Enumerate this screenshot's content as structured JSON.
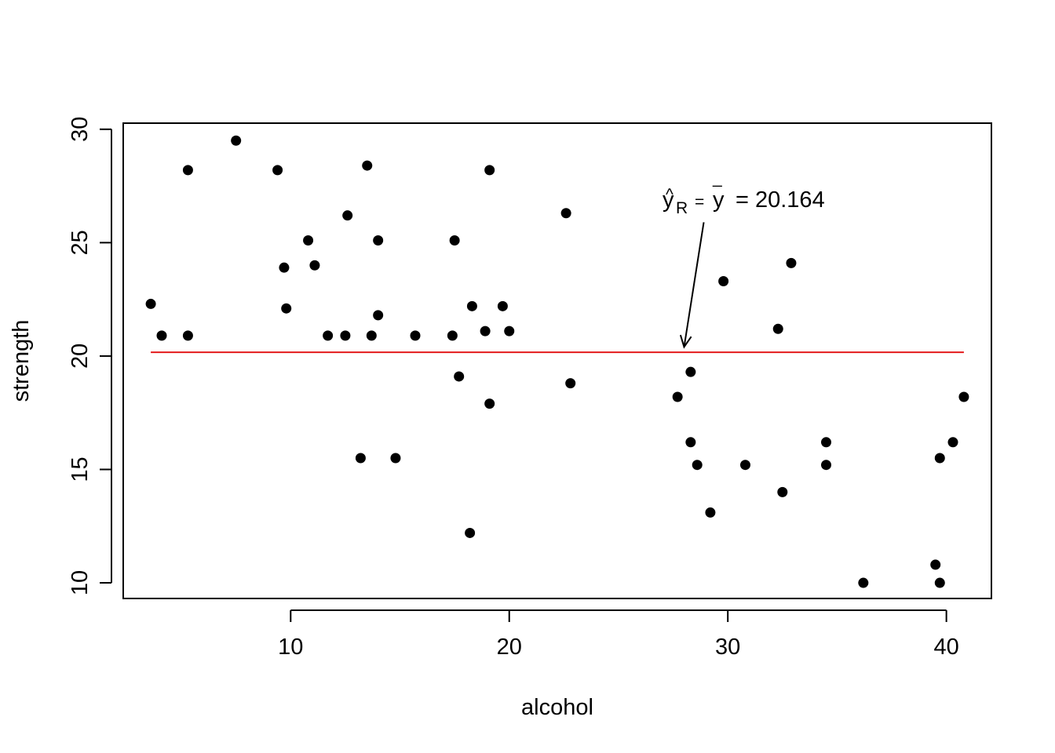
{
  "chart_data": {
    "type": "scatter",
    "title": "",
    "xlabel": "alcohol",
    "ylabel": "strength",
    "xlim": [
      2.34,
      42.06
    ],
    "ylim": [
      9.31,
      30.27
    ],
    "x_ticks": [
      10,
      20,
      30,
      40
    ],
    "y_ticks": [
      10,
      15,
      20,
      25,
      30
    ],
    "x_tick_labels": [
      "10",
      "20",
      "30",
      "40"
    ],
    "y_tick_labels": [
      "10",
      "15",
      "20",
      "25",
      "30"
    ],
    "grid": false,
    "legend": "none",
    "colors": {
      "points": "#000000",
      "fit_line": "#e31a1c",
      "axes": "#000000"
    },
    "points": [
      {
        "x": 3.6,
        "y": 22.3
      },
      {
        "x": 4.1,
        "y": 20.9
      },
      {
        "x": 5.3,
        "y": 28.2
      },
      {
        "x": 5.3,
        "y": 20.9
      },
      {
        "x": 7.5,
        "y": 29.5
      },
      {
        "x": 9.4,
        "y": 28.2
      },
      {
        "x": 9.7,
        "y": 23.9
      },
      {
        "x": 9.8,
        "y": 22.1
      },
      {
        "x": 10.8,
        "y": 25.1
      },
      {
        "x": 11.1,
        "y": 24.0
      },
      {
        "x": 11.7,
        "y": 20.9
      },
      {
        "x": 12.5,
        "y": 20.9
      },
      {
        "x": 12.6,
        "y": 26.2
      },
      {
        "x": 13.2,
        "y": 15.5
      },
      {
        "x": 13.5,
        "y": 28.4
      },
      {
        "x": 13.7,
        "y": 20.9
      },
      {
        "x": 14.0,
        "y": 25.1
      },
      {
        "x": 14.0,
        "y": 21.8
      },
      {
        "x": 14.8,
        "y": 15.5
      },
      {
        "x": 15.7,
        "y": 20.9
      },
      {
        "x": 17.4,
        "y": 20.9
      },
      {
        "x": 17.5,
        "y": 25.1
      },
      {
        "x": 17.7,
        "y": 19.1
      },
      {
        "x": 18.2,
        "y": 12.2
      },
      {
        "x": 18.3,
        "y": 22.2
      },
      {
        "x": 18.9,
        "y": 21.1
      },
      {
        "x": 19.1,
        "y": 28.2
      },
      {
        "x": 19.1,
        "y": 17.9
      },
      {
        "x": 19.7,
        "y": 22.2
      },
      {
        "x": 20.0,
        "y": 21.1
      },
      {
        "x": 22.6,
        "y": 26.3
      },
      {
        "x": 22.8,
        "y": 18.8
      },
      {
        "x": 27.7,
        "y": 18.2
      },
      {
        "x": 28.3,
        "y": 19.3
      },
      {
        "x": 28.3,
        "y": 16.2
      },
      {
        "x": 28.6,
        "y": 15.2
      },
      {
        "x": 29.2,
        "y": 13.1
      },
      {
        "x": 29.8,
        "y": 23.3
      },
      {
        "x": 30.8,
        "y": 15.2
      },
      {
        "x": 32.3,
        "y": 21.2
      },
      {
        "x": 32.5,
        "y": 14.0
      },
      {
        "x": 32.9,
        "y": 24.1
      },
      {
        "x": 34.5,
        "y": 16.2
      },
      {
        "x": 34.5,
        "y": 15.2
      },
      {
        "x": 36.2,
        "y": 10.0
      },
      {
        "x": 39.5,
        "y": 10.8
      },
      {
        "x": 39.7,
        "y": 10.0
      },
      {
        "x": 39.7,
        "y": 15.5
      },
      {
        "x": 40.3,
        "y": 16.2
      },
      {
        "x": 40.8,
        "y": 18.2
      }
    ],
    "fit_line": {
      "y": 20.164,
      "x_start": 3.6,
      "x_end": 40.8
    },
    "annotation": {
      "symbol": "y",
      "hat": "^",
      "subscript": "R",
      "equals": "=",
      "ybar": "y",
      "bar": "_",
      "value_text": "= 20.164",
      "arrow_from": {
        "x": 28.9,
        "y": 25.9
      },
      "arrow_to": {
        "x": 28.0,
        "y": 20.4
      }
    }
  }
}
